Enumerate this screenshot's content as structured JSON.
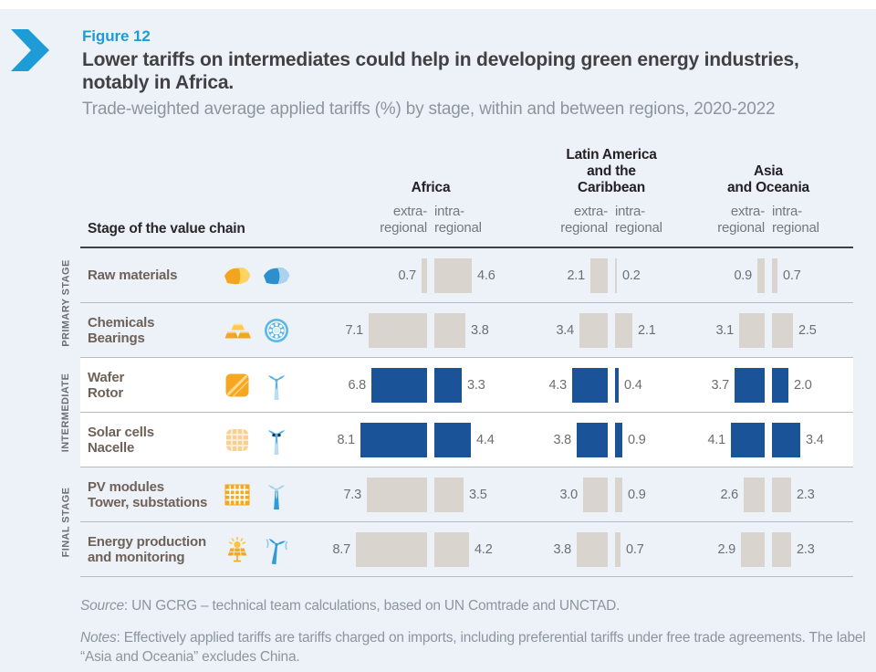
{
  "accents": {
    "figure_blue": "#1E9CD8",
    "bar_gray": "#D9D4CE",
    "bar_blue": "#1A5397"
  },
  "figure": {
    "label": "Figure 12",
    "title": "Lower tariffs on intermediates could help in developing green energy industries, notably in Africa.",
    "subtitle": "Trade-weighted average applied tariffs (%) by stage, within and between regions, 2020-2022"
  },
  "table": {
    "stage_column_header": "Stage of the value chain",
    "columns": {
      "extra": "extra-\nregional",
      "intra": "intra-\nregional"
    },
    "regions": [
      {
        "name": "Africa"
      },
      {
        "name": "Latin America\nand the Caribbean"
      },
      {
        "name": "Asia\nand Oceania"
      }
    ],
    "groups": [
      {
        "stage": "PRIMARY STAGE",
        "rows": [
          {
            "label": "Raw materials",
            "icons": [
              "mineral-orange",
              "mineral-blue"
            ],
            "highlight": false,
            "values": [
              {
                "extra": 0.7,
                "intra": 4.6
              },
              {
                "extra": 2.1,
                "intra": 0.2
              },
              {
                "extra": 0.9,
                "intra": 0.7
              }
            ]
          },
          {
            "label": "Chemicals\nBearings",
            "icons": [
              "gold-bars",
              "ball-bearing"
            ],
            "highlight": false,
            "values": [
              {
                "extra": 7.1,
                "intra": 3.8
              },
              {
                "extra": 3.4,
                "intra": 2.1
              },
              {
                "extra": 3.1,
                "intra": 2.5
              }
            ]
          }
        ]
      },
      {
        "stage": "INTERMEDIATE",
        "rows": [
          {
            "label": "Wafer\nRotor",
            "icons": [
              "wafer",
              "wind-rotor"
            ],
            "highlight": true,
            "values": [
              {
                "extra": 6.8,
                "intra": 3.3
              },
              {
                "extra": 4.3,
                "intra": 0.4
              },
              {
                "extra": 3.7,
                "intra": 2.0
              }
            ]
          },
          {
            "label": "Solar cells\nNacelle",
            "icons": [
              "solar-cell",
              "nacelle"
            ],
            "highlight": true,
            "values": [
              {
                "extra": 8.1,
                "intra": 4.4
              },
              {
                "extra": 3.8,
                "intra": 0.9
              },
              {
                "extra": 4.1,
                "intra": 3.4
              }
            ]
          }
        ]
      },
      {
        "stage": "FINAL STAGE",
        "rows": [
          {
            "label": "PV modules\nTower, substations",
            "icons": [
              "pv-module",
              "wind-tower"
            ],
            "highlight": false,
            "values": [
              {
                "extra": 7.3,
                "intra": 3.5
              },
              {
                "extra": 3.0,
                "intra": 0.9
              },
              {
                "extra": 2.6,
                "intra": 2.3
              }
            ]
          },
          {
            "label": "Energy production\nand monitoring",
            "icons": [
              "solar-sun",
              "wind-monitor"
            ],
            "highlight": false,
            "values": [
              {
                "extra": 8.7,
                "intra": 4.2
              },
              {
                "extra": 3.8,
                "intra": 0.7
              },
              {
                "extra": 2.9,
                "intra": 2.3
              }
            ]
          }
        ]
      }
    ]
  },
  "source": {
    "prefix": "Source",
    "text": ": UN GCRG – technical team calculations, based on UN Comtrade and UNCTAD."
  },
  "notes": {
    "prefix": "Notes",
    "text": ": Effectively applied tariffs are tariffs charged on imports, including preferential tariffs under free trade agreements. The label “Asia and Oceania” excludes China."
  },
  "chart_data": {
    "type": "bar",
    "title": "Lower tariffs on intermediates could help in developing green energy industries, notably in Africa.",
    "subtitle": "Trade-weighted average applied tariffs (%) by stage, within and between regions, 2020-2022",
    "unit": "percent",
    "categories": [
      "Raw materials",
      "Chemicals, Bearings",
      "Wafer, Rotor",
      "Solar cells, Nacelle",
      "PV modules, Tower, substations",
      "Energy production and monitoring"
    ],
    "category_stages": [
      "Primary stage",
      "Primary stage",
      "Intermediate",
      "Intermediate",
      "Final stage",
      "Final stage"
    ],
    "highlighted_stage": "Intermediate",
    "series": [
      {
        "name": "Africa extra-regional",
        "values": [
          0.7,
          7.1,
          6.8,
          8.1,
          7.3,
          8.7
        ]
      },
      {
        "name": "Africa intra-regional",
        "values": [
          4.6,
          3.8,
          3.3,
          4.4,
          3.5,
          4.2
        ]
      },
      {
        "name": "Latin America and the Caribbean extra-regional",
        "values": [
          2.1,
          3.4,
          4.3,
          3.8,
          3.0,
          3.8
        ]
      },
      {
        "name": "Latin America and the Caribbean intra-regional",
        "values": [
          0.2,
          2.1,
          0.4,
          0.9,
          0.9,
          0.7
        ]
      },
      {
        "name": "Asia and Oceania extra-regional",
        "values": [
          0.9,
          3.1,
          3.7,
          4.1,
          2.6,
          2.9
        ]
      },
      {
        "name": "Asia and Oceania intra-regional",
        "values": [
          0.7,
          2.5,
          2.0,
          3.4,
          2.3,
          2.3
        ]
      }
    ],
    "value_range": [
      0,
      8.7
    ]
  }
}
